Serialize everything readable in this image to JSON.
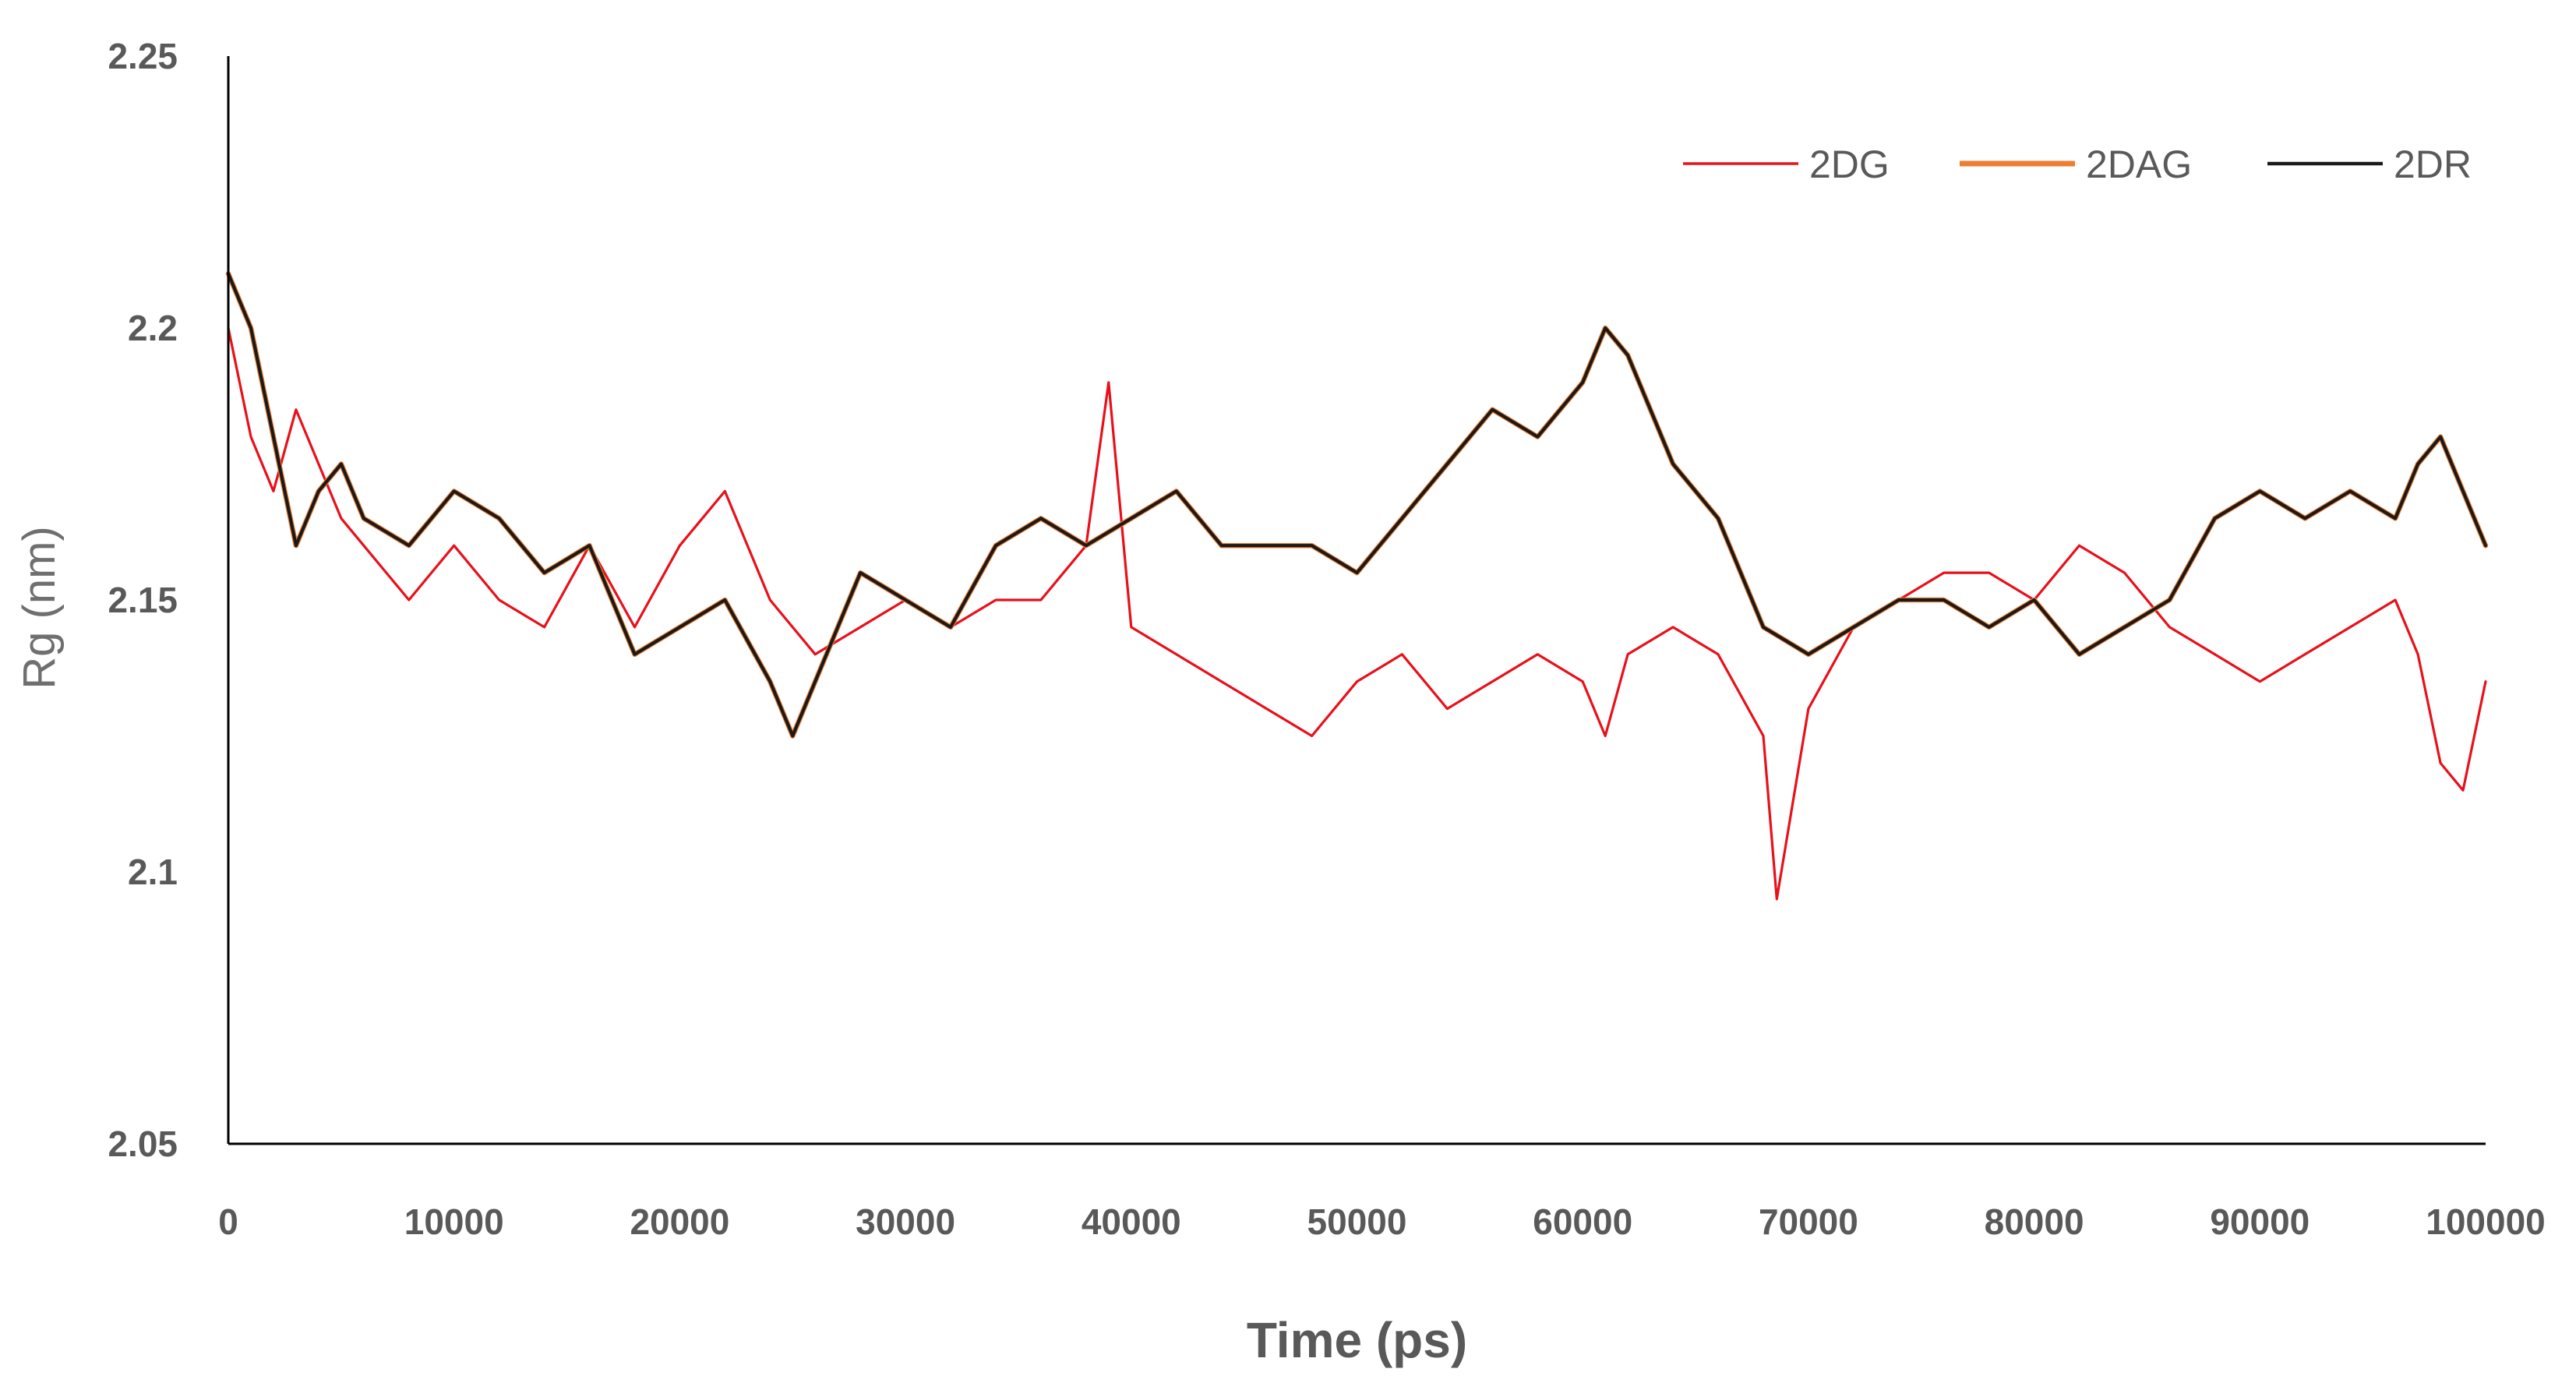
{
  "chart_data": {
    "type": "line",
    "title": "",
    "xlabel": "Time (ps)",
    "ylabel": "Rg (nm)",
    "xlim": [
      0,
      100000
    ],
    "ylim": [
      2.05,
      2.25
    ],
    "x_ticks": [
      "0",
      "10000",
      "20000",
      "30000",
      "40000",
      "50000",
      "60000",
      "70000",
      "80000",
      "90000",
      "100000"
    ],
    "y_ticks": [
      "2.05",
      "2.1",
      "2.15",
      "2.2",
      "2.25"
    ],
    "grid": false,
    "legend_position": "top-right",
    "series": [
      {
        "name": "2DG",
        "color": "#e8101a",
        "x": [
          0,
          1000,
          2000,
          3000,
          4000,
          5000,
          6000,
          7000,
          8000,
          9000,
          10000,
          12000,
          14000,
          16000,
          18000,
          20000,
          22000,
          24000,
          26000,
          28000,
          30000,
          32000,
          34000,
          36000,
          38000,
          39000,
          40000,
          42000,
          44000,
          46000,
          48000,
          50000,
          52000,
          54000,
          56000,
          58000,
          60000,
          61000,
          62000,
          64000,
          66000,
          68000,
          68600,
          70000,
          72000,
          74000,
          76000,
          78000,
          80000,
          82000,
          84000,
          86000,
          88000,
          90000,
          92000,
          94000,
          96000,
          97000,
          98000,
          99000,
          100000
        ],
        "y": [
          2.2,
          2.18,
          2.17,
          2.185,
          2.175,
          2.165,
          2.16,
          2.155,
          2.15,
          2.155,
          2.16,
          2.15,
          2.145,
          2.16,
          2.145,
          2.16,
          2.17,
          2.15,
          2.14,
          2.145,
          2.15,
          2.145,
          2.15,
          2.15,
          2.16,
          2.19,
          2.145,
          2.14,
          2.135,
          2.13,
          2.125,
          2.135,
          2.14,
          2.13,
          2.135,
          2.14,
          2.135,
          2.125,
          2.14,
          2.145,
          2.14,
          2.125,
          2.095,
          2.13,
          2.145,
          2.15,
          2.155,
          2.155,
          2.15,
          2.16,
          2.155,
          2.145,
          2.14,
          2.135,
          2.14,
          2.145,
          2.15,
          2.14,
          2.12,
          2.115,
          2.135
        ]
      },
      {
        "name": "2DAG",
        "color": "#ed7d31",
        "x": [
          0,
          1000,
          2000,
          3000,
          4000,
          5000,
          6000,
          8000,
          10000,
          12000,
          14000,
          16000,
          18000,
          20000,
          22000,
          24000,
          25000,
          26000,
          28000,
          30000,
          32000,
          34000,
          36000,
          38000,
          40000,
          42000,
          44000,
          46000,
          48000,
          50000,
          52000,
          54000,
          56000,
          58000,
          60000,
          61000,
          62000,
          63000,
          64000,
          66000,
          68000,
          70000,
          72000,
          74000,
          76000,
          78000,
          80000,
          82000,
          84000,
          86000,
          88000,
          90000,
          92000,
          94000,
          96000,
          97000,
          98000,
          99000,
          100000
        ],
        "y": [
          2.21,
          2.2,
          2.18,
          2.16,
          2.17,
          2.175,
          2.165,
          2.16,
          2.17,
          2.165,
          2.155,
          2.16,
          2.14,
          2.145,
          2.15,
          2.135,
          2.125,
          2.135,
          2.155,
          2.15,
          2.145,
          2.16,
          2.165,
          2.16,
          2.165,
          2.17,
          2.16,
          2.16,
          2.16,
          2.155,
          2.165,
          2.175,
          2.185,
          2.18,
          2.19,
          2.2,
          2.195,
          2.185,
          2.175,
          2.165,
          2.145,
          2.14,
          2.145,
          2.15,
          2.15,
          2.145,
          2.15,
          2.14,
          2.145,
          2.15,
          2.165,
          2.17,
          2.165,
          2.17,
          2.165,
          2.175,
          2.18,
          2.17,
          2.16
        ]
      },
      {
        "name": "2DR",
        "color": "#1a1a1a",
        "x": [
          0,
          1000,
          2000,
          3000,
          4000,
          5000,
          6000,
          8000,
          10000,
          12000,
          14000,
          16000,
          18000,
          20000,
          22000,
          24000,
          25000,
          26000,
          28000,
          30000,
          32000,
          34000,
          36000,
          38000,
          40000,
          42000,
          44000,
          46000,
          48000,
          50000,
          52000,
          54000,
          56000,
          58000,
          60000,
          61000,
          62000,
          63000,
          64000,
          66000,
          68000,
          70000,
          72000,
          74000,
          76000,
          78000,
          80000,
          82000,
          84000,
          86000,
          88000,
          90000,
          92000,
          94000,
          96000,
          97000,
          98000,
          99000,
          100000
        ],
        "y": [
          2.21,
          2.2,
          2.18,
          2.16,
          2.17,
          2.175,
          2.165,
          2.16,
          2.17,
          2.165,
          2.155,
          2.16,
          2.14,
          2.145,
          2.15,
          2.135,
          2.125,
          2.135,
          2.155,
          2.15,
          2.145,
          2.16,
          2.165,
          2.16,
          2.165,
          2.17,
          2.16,
          2.16,
          2.16,
          2.155,
          2.165,
          2.175,
          2.185,
          2.18,
          2.19,
          2.2,
          2.195,
          2.185,
          2.175,
          2.165,
          2.145,
          2.14,
          2.145,
          2.15,
          2.15,
          2.145,
          2.15,
          2.14,
          2.145,
          2.15,
          2.165,
          2.17,
          2.165,
          2.17,
          2.165,
          2.175,
          2.18,
          2.17,
          2.16
        ]
      }
    ]
  }
}
